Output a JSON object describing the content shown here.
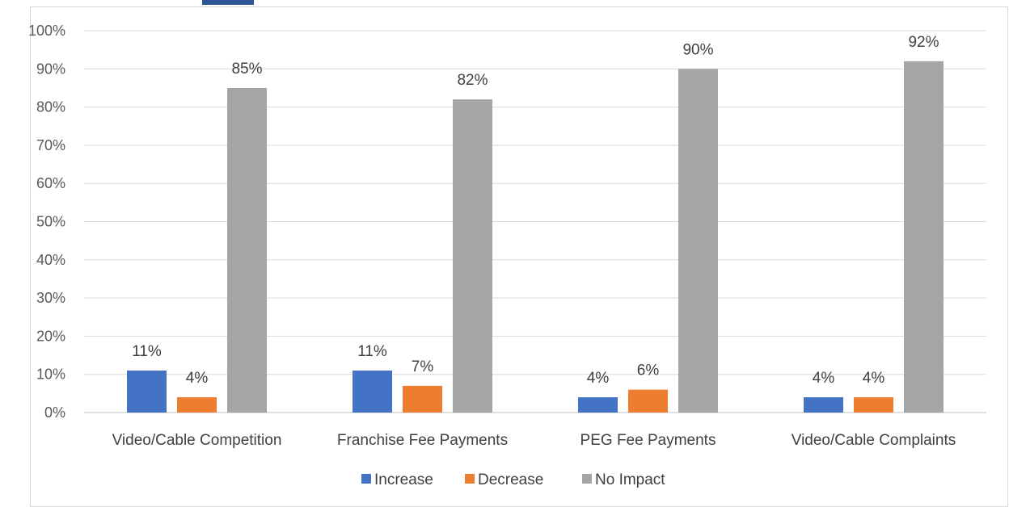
{
  "chart_data": {
    "type": "bar",
    "title": "",
    "xlabel": "",
    "ylabel": "",
    "categories": [
      "Video/Cable Competition",
      "Franchise Fee Payments",
      "PEG Fee Payments",
      "Video/Cable Complaints"
    ],
    "series": [
      {
        "name": "Increase",
        "values": [
          11,
          11,
          4,
          4
        ],
        "color": "#4472c4"
      },
      {
        "name": "Decrease",
        "values": [
          4,
          7,
          6,
          4
        ],
        "color": "#ed7d31"
      },
      {
        "name": "No Impact",
        "values": [
          85,
          82,
          90,
          92
        ],
        "color": "#a5a5a5"
      }
    ],
    "data_labels": [
      [
        "11%",
        "11%",
        "4%",
        "4%"
      ],
      [
        "4%",
        "7%",
        "6%",
        "4%"
      ],
      [
        "85%",
        "82%",
        "90%",
        "92%"
      ]
    ],
    "ylim": [
      0,
      100
    ],
    "yticks": [
      0,
      10,
      20,
      30,
      40,
      50,
      60,
      70,
      80,
      90,
      100
    ],
    "ytick_labels": [
      "0%",
      "10%",
      "20%",
      "30%",
      "40%",
      "50%",
      "60%",
      "70%",
      "80%",
      "90%",
      "100%"
    ],
    "grid": true,
    "legend_position": "bottom",
    "gridline_color": "#d9d9d9",
    "axis_line_color": "#bfbfbf"
  }
}
